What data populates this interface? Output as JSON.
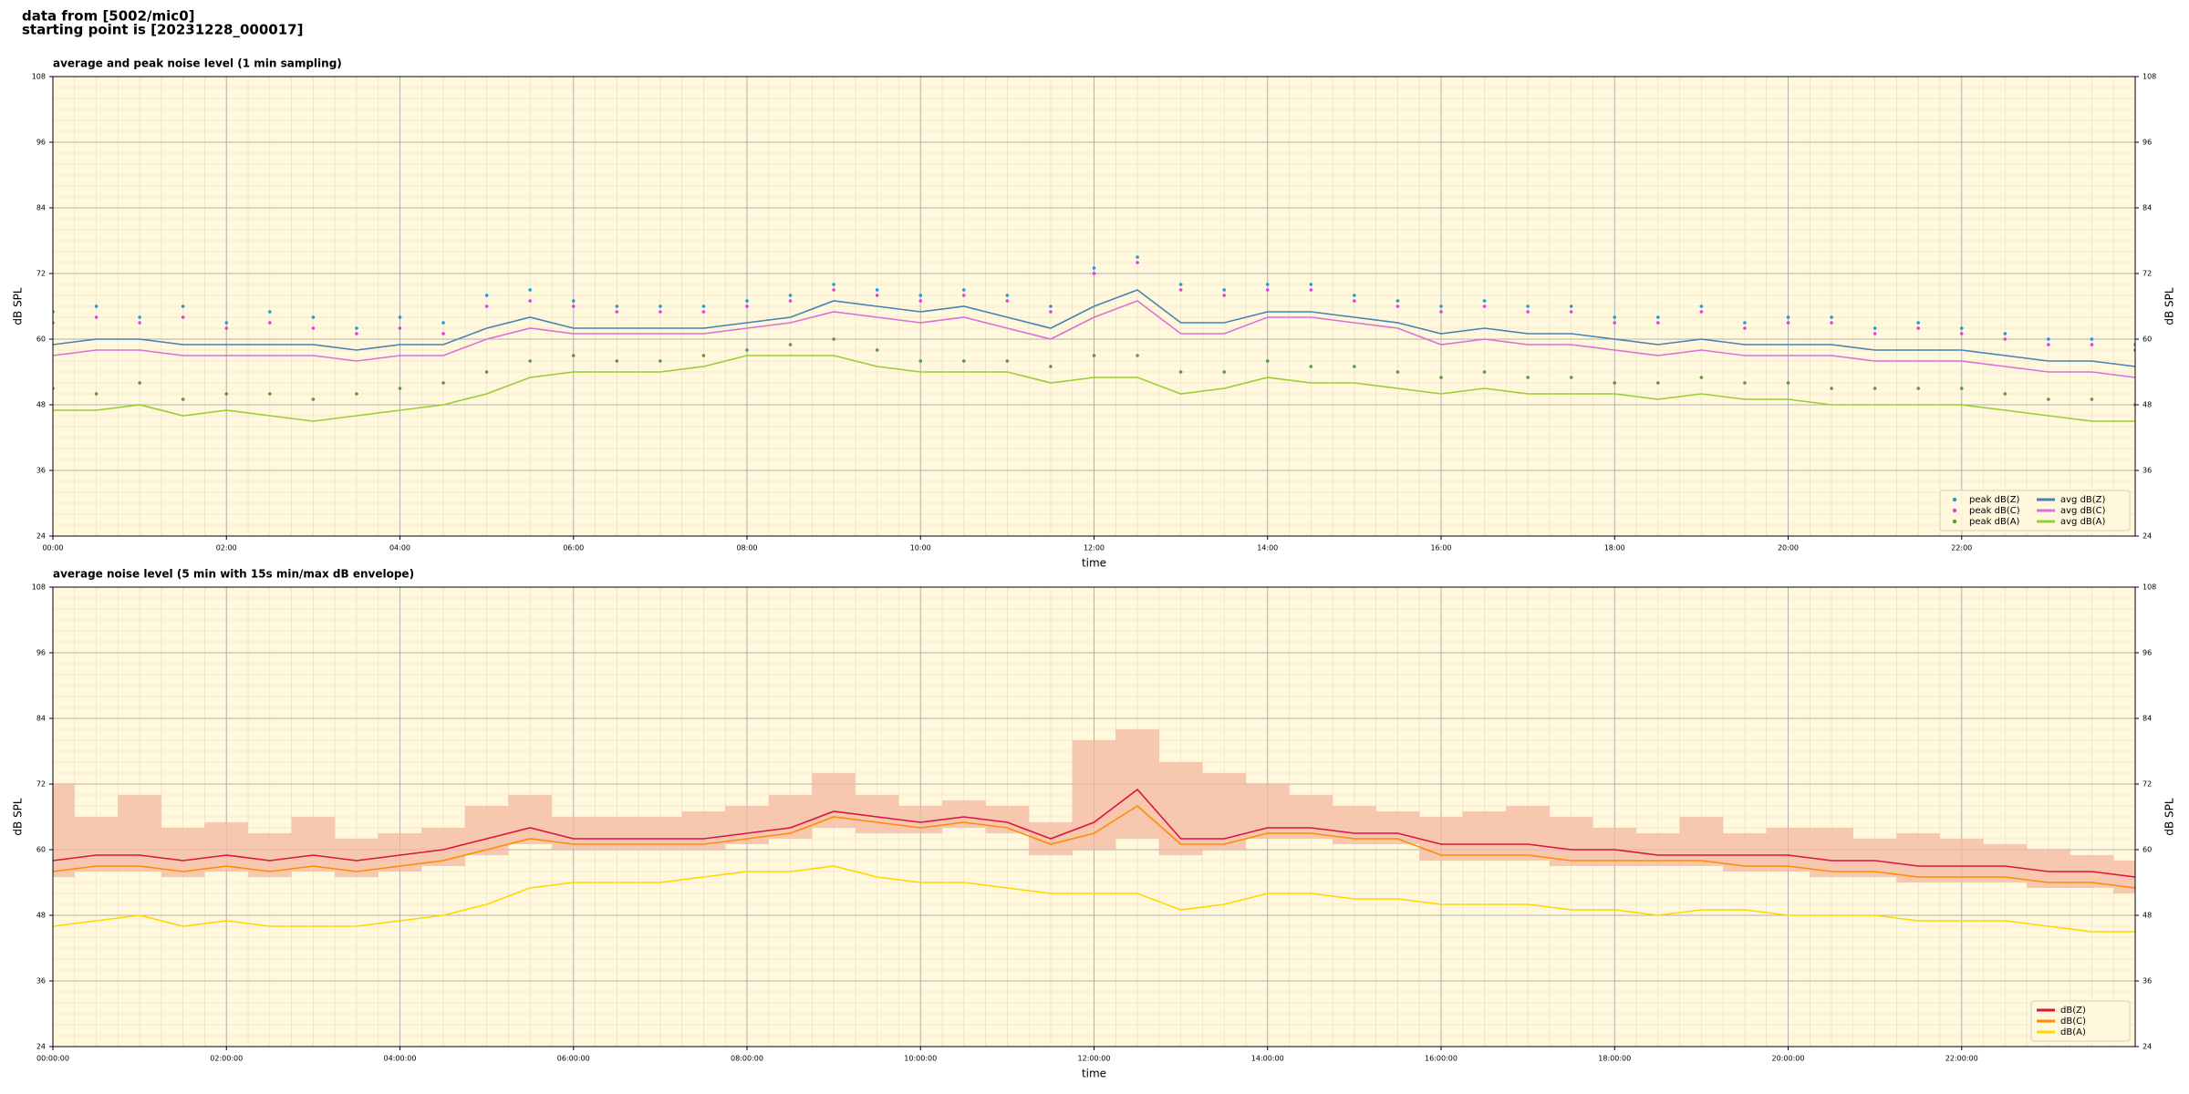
{
  "header": [
    "data from [5002/mic0]",
    "starting point is [20231228_000017]"
  ],
  "chart_data": [
    {
      "type": "line",
      "title": "average and peak noise level (1 min sampling)",
      "xlabel": "time",
      "ylabel": "dB SPL",
      "xlim": [
        0,
        24
      ],
      "ylim": [
        24,
        108
      ],
      "yticks": [
        24,
        36,
        48,
        60,
        72,
        84,
        96,
        108
      ],
      "xticks": [
        {
          "value": 0,
          "label": "00:00"
        },
        {
          "value": 2,
          "label": "02:00"
        },
        {
          "value": 4,
          "label": "04:00"
        },
        {
          "value": 6,
          "label": "06:00"
        },
        {
          "value": 8,
          "label": "08:00"
        },
        {
          "value": 10,
          "label": "10:00"
        },
        {
          "value": 12,
          "label": "12:00"
        },
        {
          "value": 14,
          "label": "14:00"
        },
        {
          "value": 16,
          "label": "16:00"
        },
        {
          "value": 18,
          "label": "18:00"
        },
        {
          "value": 20,
          "label": "20:00"
        },
        {
          "value": 22,
          "label": "22:00"
        }
      ],
      "grid": true,
      "background": "#fff8dc",
      "legend": "lower right",
      "legend_columns": 2,
      "x": [
        0,
        0.5,
        1,
        1.5,
        2,
        2.5,
        3,
        3.5,
        4,
        4.5,
        5,
        5.5,
        6,
        6.5,
        7,
        7.5,
        8,
        8.5,
        9,
        9.5,
        10,
        10.5,
        11,
        11.5,
        12,
        12.5,
        13,
        13.5,
        14,
        14.5,
        15,
        15.5,
        16,
        16.5,
        17,
        17.5,
        18,
        18.5,
        19,
        19.5,
        20,
        20.5,
        21,
        21.5,
        22,
        22.5,
        23,
        23.5,
        24
      ],
      "series": [
        {
          "name": "peak dB(Z)",
          "style": "dots",
          "color": "#1f9bde",
          "values": [
            65,
            66,
            64,
            66,
            63,
            65,
            64,
            62,
            64,
            63,
            68,
            69,
            67,
            66,
            66,
            66,
            67,
            68,
            70,
            69,
            68,
            69,
            68,
            66,
            73,
            75,
            70,
            69,
            70,
            70,
            68,
            67,
            66,
            67,
            66,
            66,
            64,
            64,
            66,
            63,
            64,
            64,
            62,
            63,
            62,
            61,
            60,
            60,
            59
          ]
        },
        {
          "name": "peak dB(C)",
          "style": "dots",
          "color": "#e040e0",
          "values": [
            63,
            64,
            63,
            64,
            62,
            63,
            62,
            61,
            62,
            61,
            66,
            67,
            66,
            65,
            65,
            65,
            66,
            67,
            69,
            68,
            67,
            68,
            67,
            65,
            72,
            74,
            69,
            68,
            69,
            69,
            67,
            66,
            65,
            66,
            65,
            65,
            63,
            63,
            65,
            62,
            63,
            63,
            61,
            62,
            61,
            60,
            59,
            59,
            58
          ]
        },
        {
          "name": "peak dB(A)",
          "style": "dots",
          "color": "#5a9a3a",
          "values": [
            51,
            50,
            52,
            49,
            50,
            50,
            49,
            50,
            51,
            52,
            54,
            56,
            57,
            56,
            56,
            57,
            58,
            59,
            60,
            58,
            56,
            56,
            56,
            55,
            57,
            57,
            54,
            54,
            56,
            55,
            55,
            54,
            53,
            54,
            53,
            53,
            52,
            52,
            53,
            52,
            52,
            51,
            51,
            51,
            51,
            50,
            49,
            49,
            48
          ]
        },
        {
          "name": "avg dB(Z)",
          "style": "line",
          "color": "#4682b4",
          "values": [
            59,
            60,
            60,
            59,
            59,
            59,
            59,
            58,
            59,
            59,
            62,
            64,
            62,
            62,
            62,
            62,
            63,
            64,
            67,
            66,
            65,
            66,
            64,
            62,
            66,
            69,
            63,
            63,
            65,
            65,
            64,
            63,
            61,
            62,
            61,
            61,
            60,
            59,
            60,
            59,
            59,
            59,
            58,
            58,
            58,
            57,
            56,
            56,
            55
          ]
        },
        {
          "name": "avg dB(C)",
          "style": "line",
          "color": "#da70d6",
          "values": [
            57,
            58,
            58,
            57,
            57,
            57,
            57,
            56,
            57,
            57,
            60,
            62,
            61,
            61,
            61,
            61,
            62,
            63,
            65,
            64,
            63,
            64,
            62,
            60,
            64,
            67,
            61,
            61,
            64,
            64,
            63,
            62,
            59,
            60,
            59,
            59,
            58,
            57,
            58,
            57,
            57,
            57,
            56,
            56,
            56,
            55,
            54,
            54,
            53
          ]
        },
        {
          "name": "avg dB(A)",
          "style": "line",
          "color": "#9acd32",
          "values": [
            47,
            47,
            48,
            46,
            47,
            46,
            45,
            46,
            47,
            48,
            50,
            53,
            54,
            54,
            54,
            55,
            57,
            57,
            57,
            55,
            54,
            54,
            54,
            52,
            53,
            53,
            50,
            51,
            53,
            52,
            52,
            51,
            50,
            51,
            50,
            50,
            50,
            49,
            50,
            49,
            49,
            48,
            48,
            48,
            48,
            47,
            46,
            45,
            45
          ]
        }
      ]
    },
    {
      "type": "line",
      "title": "average noise level (5 min with 15s min/max dB envelope)",
      "xlabel": "time",
      "ylabel": "dB SPL",
      "xlim": [
        0,
        24
      ],
      "ylim": [
        24,
        108
      ],
      "yticks": [
        24,
        36,
        48,
        60,
        72,
        84,
        96,
        108
      ],
      "xticks": [
        {
          "value": 0,
          "label": "00:00:00"
        },
        {
          "value": 2,
          "label": "02:00:00"
        },
        {
          "value": 4,
          "label": "04:00:00"
        },
        {
          "value": 6,
          "label": "06:00:00"
        },
        {
          "value": 8,
          "label": "08:00:00"
        },
        {
          "value": 10,
          "label": "10:00:00"
        },
        {
          "value": 12,
          "label": "12:00:00"
        },
        {
          "value": 14,
          "label": "14:00:00"
        },
        {
          "value": 16,
          "label": "16:00:00"
        },
        {
          "value": 18,
          "label": "18:00:00"
        },
        {
          "value": 20,
          "label": "20:00:00"
        },
        {
          "value": 22,
          "label": "22:00:00"
        }
      ],
      "grid": true,
      "background": "#fff8dc",
      "legend": "lower right",
      "legend_columns": 1,
      "x": [
        0,
        0.5,
        1,
        1.5,
        2,
        2.5,
        3,
        3.5,
        4,
        4.5,
        5,
        5.5,
        6,
        6.5,
        7,
        7.5,
        8,
        8.5,
        9,
        9.5,
        10,
        10.5,
        11,
        11.5,
        12,
        12.5,
        13,
        13.5,
        14,
        14.5,
        15,
        15.5,
        16,
        16.5,
        17,
        17.5,
        18,
        18.5,
        19,
        19.5,
        20,
        20.5,
        21,
        21.5,
        22,
        22.5,
        23,
        23.5,
        24
      ],
      "envelope": {
        "color": "#f4b8a0",
        "low": [
          55,
          56,
          56,
          55,
          56,
          55,
          56,
          55,
          56,
          57,
          59,
          61,
          60,
          60,
          60,
          60,
          61,
          62,
          64,
          63,
          63,
          64,
          63,
          59,
          60,
          62,
          59,
          60,
          62,
          62,
          61,
          61,
          58,
          58,
          58,
          57,
          57,
          57,
          57,
          56,
          56,
          55,
          55,
          54,
          54,
          54,
          53,
          53,
          52
        ],
        "high": [
          72,
          66,
          70,
          64,
          65,
          63,
          66,
          62,
          63,
          64,
          68,
          70,
          66,
          66,
          66,
          67,
          68,
          70,
          74,
          70,
          68,
          69,
          68,
          65,
          80,
          82,
          76,
          74,
          72,
          70,
          68,
          67,
          66,
          67,
          68,
          66,
          64,
          63,
          66,
          63,
          64,
          64,
          62,
          63,
          62,
          61,
          60,
          59,
          58
        ]
      },
      "series": [
        {
          "name": "dB(Z)",
          "style": "line",
          "color": "#dc143c",
          "values": [
            58,
            59,
            59,
            58,
            59,
            58,
            59,
            58,
            59,
            60,
            62,
            64,
            62,
            62,
            62,
            62,
            63,
            64,
            67,
            66,
            65,
            66,
            65,
            62,
            65,
            71,
            62,
            62,
            64,
            64,
            63,
            63,
            61,
            61,
            61,
            60,
            60,
            59,
            59,
            59,
            59,
            58,
            58,
            57,
            57,
            57,
            56,
            56,
            55
          ]
        },
        {
          "name": "dB(C)",
          "style": "line",
          "color": "#ff8c00",
          "values": [
            56,
            57,
            57,
            56,
            57,
            56,
            57,
            56,
            57,
            58,
            60,
            62,
            61,
            61,
            61,
            61,
            62,
            63,
            66,
            65,
            64,
            65,
            64,
            61,
            63,
            68,
            61,
            61,
            63,
            63,
            62,
            62,
            59,
            59,
            59,
            58,
            58,
            58,
            58,
            57,
            57,
            56,
            56,
            55,
            55,
            55,
            54,
            54,
            53
          ]
        },
        {
          "name": "dB(A)",
          "style": "line",
          "color": "#ffd700",
          "values": [
            46,
            47,
            48,
            46,
            47,
            46,
            46,
            46,
            47,
            48,
            50,
            53,
            54,
            54,
            54,
            55,
            56,
            56,
            57,
            55,
            54,
            54,
            53,
            52,
            52,
            52,
            49,
            50,
            52,
            52,
            51,
            51,
            50,
            50,
            50,
            49,
            49,
            48,
            49,
            49,
            48,
            48,
            48,
            47,
            47,
            47,
            46,
            45,
            45
          ]
        }
      ]
    }
  ]
}
